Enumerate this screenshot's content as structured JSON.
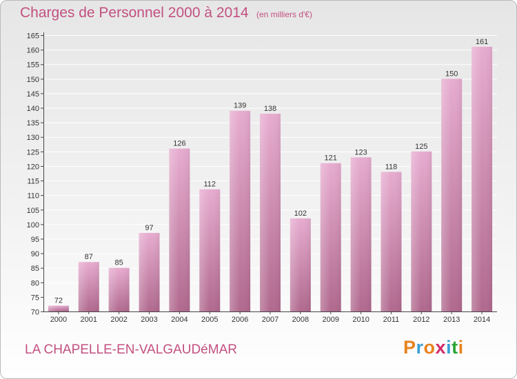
{
  "title": "Charges de Personnel 2000 à 2014",
  "subtitle": "(en milliers d'€)",
  "commune": "LA CHAPELLE-EN-VALGAUDéMAR",
  "logo": {
    "letters": [
      "P",
      "r",
      "o",
      "x",
      "i",
      "t",
      "i"
    ],
    "colors": [
      "#e8821e",
      "#3a9fd6",
      "#e8821e",
      "#d42b6b",
      "#3a9fd6",
      "#2aa336",
      "#e8821e"
    ]
  },
  "colors": {
    "bar_light": "#e7acd0",
    "bar_dark": "#b0698e",
    "grid": "#ffffff",
    "axis": "#444444"
  },
  "chart_data": {
    "type": "bar",
    "title": "Charges de Personnel 2000 à 2014",
    "subtitle": "(en milliers d'€)",
    "categories": [
      "2000",
      "2001",
      "2002",
      "2003",
      "2004",
      "2005",
      "2006",
      "2007",
      "2008",
      "2009",
      "2010",
      "2011",
      "2012",
      "2013",
      "2014"
    ],
    "values": [
      72,
      87,
      85,
      97,
      126,
      112,
      139,
      138,
      102,
      121,
      123,
      118,
      125,
      150,
      161
    ],
    "ylim": [
      70,
      165
    ],
    "yticks": [
      70,
      75,
      80,
      85,
      90,
      95,
      100,
      105,
      110,
      115,
      120,
      125,
      130,
      135,
      140,
      145,
      150,
      155,
      160,
      165
    ],
    "grid": true
  }
}
